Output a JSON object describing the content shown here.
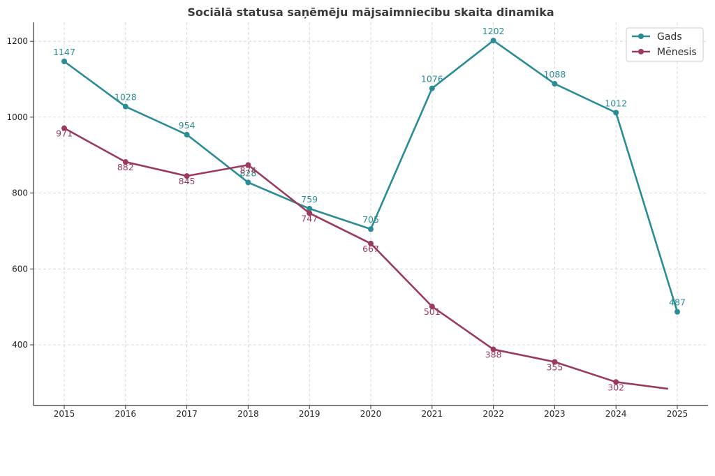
{
  "chart_data": {
    "type": "line",
    "title": "Sociālā statusa saņēmēju mājsaimniecību skaita dinamika",
    "xlabel": "",
    "ylabel": "",
    "categories": [
      "2015",
      "2016",
      "2017",
      "2018",
      "2019",
      "2020",
      "2021",
      "2022",
      "2023",
      "2024",
      "2025"
    ],
    "ylim": [
      240,
      1250
    ],
    "yticks": [
      400,
      600,
      800,
      1000,
      1200
    ],
    "grid": true,
    "legend_position": "top-right",
    "series": [
      {
        "name": "Gads",
        "color": "#2a8c95",
        "values": [
          1147,
          1028,
          954,
          828,
          759,
          705,
          1076,
          1202,
          1088,
          1012,
          487
        ],
        "markers": [
          true,
          true,
          true,
          true,
          true,
          true,
          true,
          true,
          true,
          true,
          true
        ],
        "labels": [
          "1147",
          "1028",
          "954",
          "828",
          "759",
          "705",
          "1076",
          "1202",
          "1088",
          "1012",
          "487"
        ]
      },
      {
        "name": "Mēnesis",
        "color": "#9b3b5a",
        "values": [
          971,
          882,
          845,
          874,
          747,
          667,
          501,
          388,
          355,
          302,
          284
        ],
        "markers": [
          true,
          true,
          true,
          true,
          true,
          true,
          true,
          true,
          true,
          true,
          false
        ],
        "labels": [
          "971",
          "882",
          "845",
          "874",
          "747",
          "667",
          "501",
          "388",
          "355",
          "302",
          ""
        ],
        "last_x_index": 9.85
      }
    ]
  }
}
